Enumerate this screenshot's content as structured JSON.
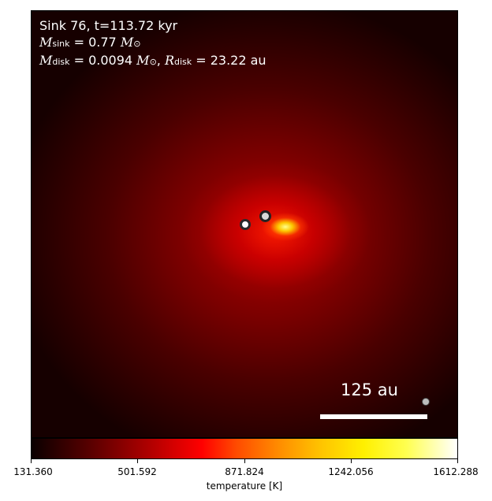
{
  "plot": {
    "line1": "Sink 76, t=113.72 kyr",
    "msink_label": "M",
    "msink_sub": "sink",
    "msink_value": " = 0.77",
    "msink_unit": " M",
    "msink_unit_sub": "⊙",
    "mdisk_label": "M",
    "mdisk_sub": "disk",
    "mdisk_value": " = 0.0094",
    "mdisk_unit": " M",
    "mdisk_unit_sub": "⊙",
    "rdisk_sep": ", ",
    "rdisk_label": "R",
    "rdisk_sub": "disk",
    "rdisk_value": " = 23.22 au",
    "scale_label": "125 au"
  },
  "colorbar": {
    "ticks": [
      "131.360",
      "501.592",
      "871.824",
      "1242.056",
      "1612.288"
    ],
    "label": "temperature [K]"
  },
  "colors": {
    "background": "#1a0000",
    "core": "#ff0000",
    "hot": "#ffff50"
  }
}
